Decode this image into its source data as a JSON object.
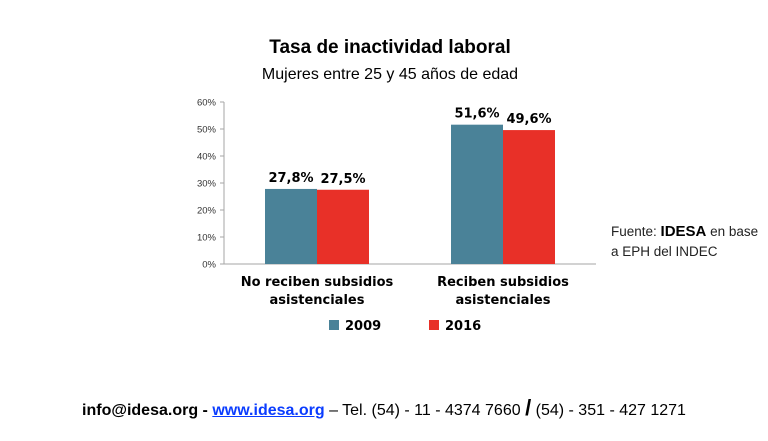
{
  "title": "Tasa de inactividad laboral",
  "subtitle": "Mujeres entre 25 y 45 años de edad",
  "chart_data": {
    "type": "bar",
    "title": "Tasa de inactividad laboral",
    "subtitle": "Mujeres entre 25 y 45 años de edad",
    "categories": [
      [
        "No reciben subsidios",
        "asistenciales"
      ],
      [
        "Reciben subsidios",
        "asistenciales"
      ]
    ],
    "series": [
      {
        "name": "2009",
        "color": "#4a8298",
        "values": [
          27.8,
          51.6
        ],
        "labels": [
          "27,8%",
          "51,6%"
        ]
      },
      {
        "name": "2016",
        "color": "#e83028",
        "values": [
          27.5,
          49.6
        ],
        "labels": [
          "27,5%",
          "49,6%"
        ]
      }
    ],
    "ylim": [
      0,
      60
    ],
    "yticks": [
      0,
      10,
      20,
      30,
      40,
      50,
      60
    ],
    "ytick_labels": [
      "0%",
      "10%",
      "20%",
      "30%",
      "40%",
      "50%",
      "60%"
    ],
    "grid": false,
    "legend_position": "bottom-center",
    "xlabel": "",
    "ylabel": ""
  },
  "source": {
    "prefix": "Fuente: ",
    "brand": "IDESA",
    "suffix": " en base a EPH del INDEC"
  },
  "footer": {
    "email": "info@idesa.org",
    "dash1": " - ",
    "website": "www.idesa.org",
    "tel": " – Tel. (54) - 11 - 4374 7660 ",
    "slash": "/",
    "tel2": " (54) - 351 - 427 1271"
  }
}
